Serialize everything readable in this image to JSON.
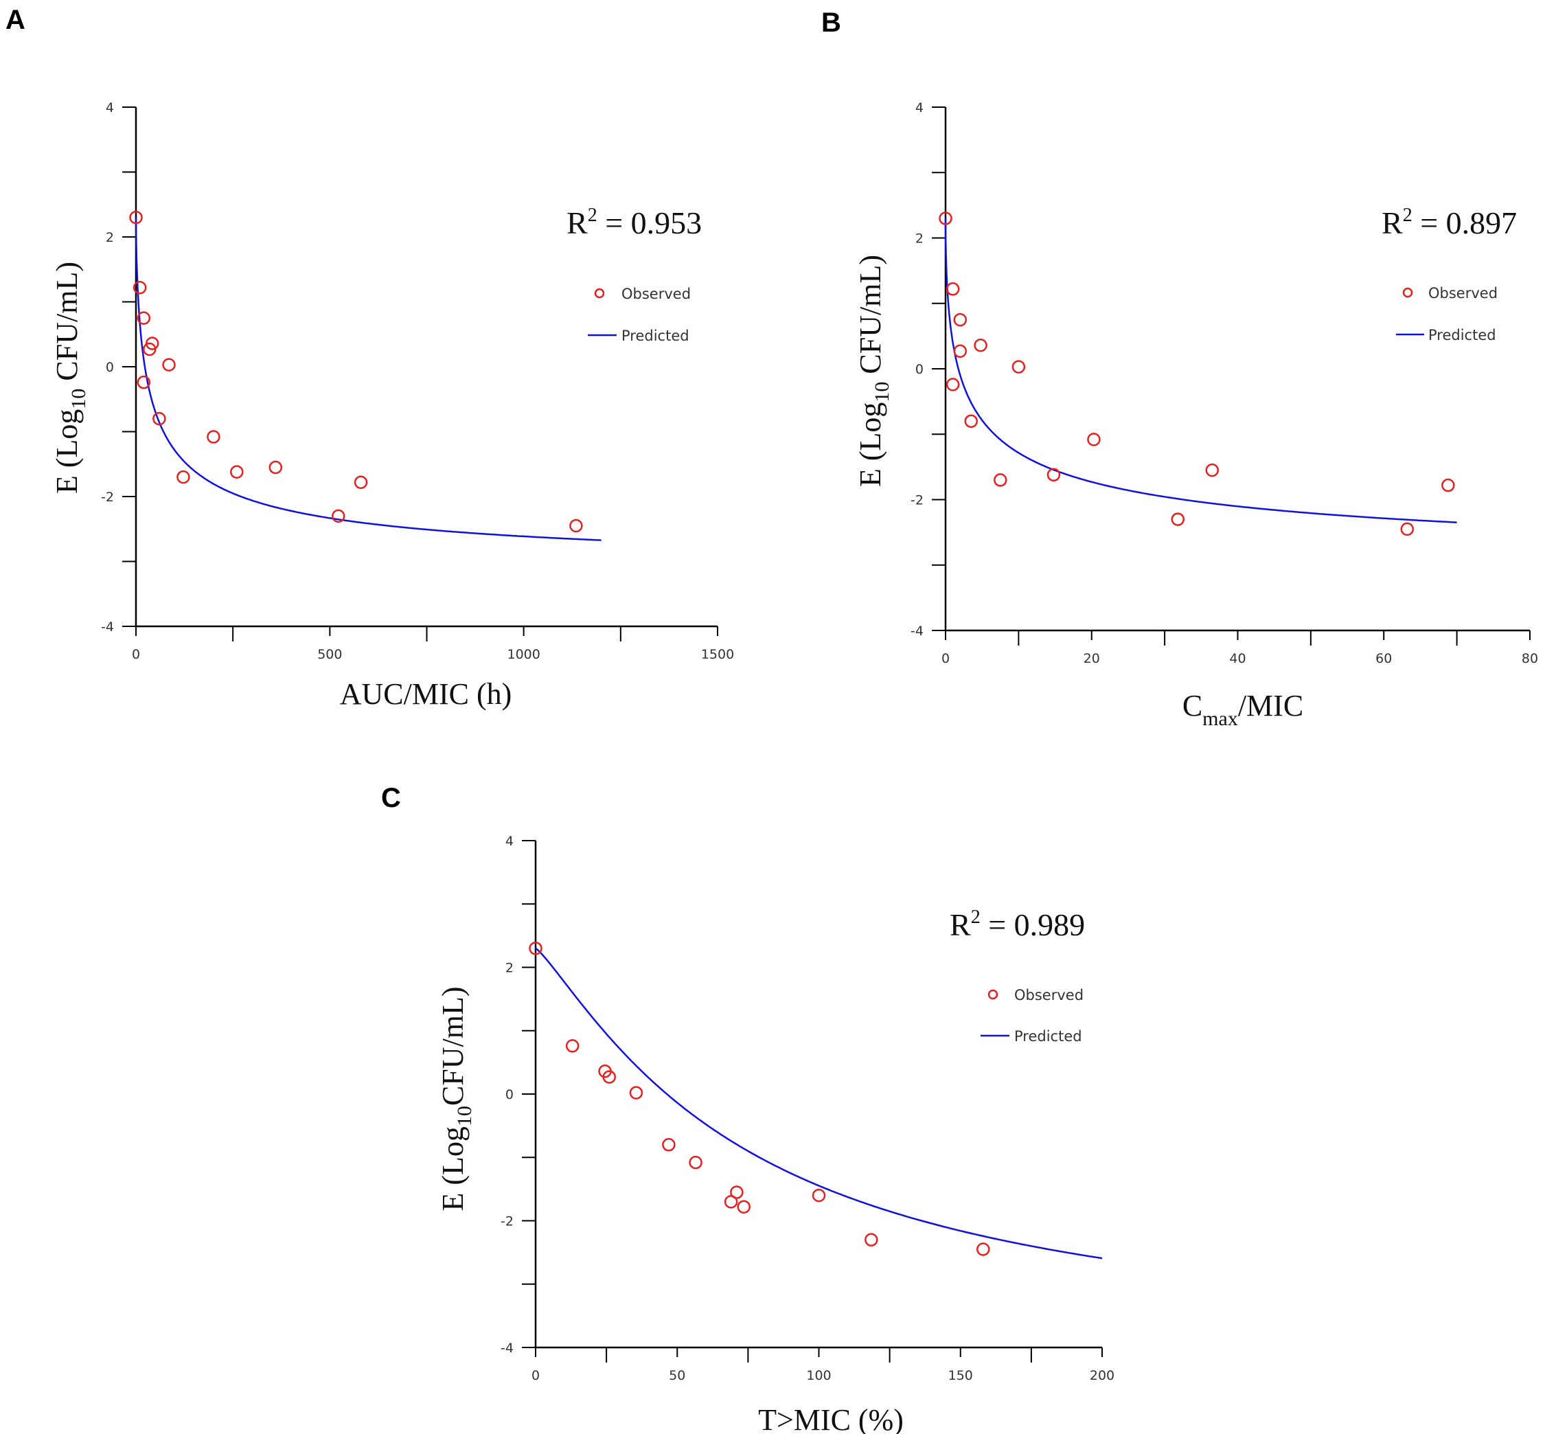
{
  "chart_data": [
    {
      "type": "scatter",
      "panel": "A",
      "ylabel_prefix": "E (Log",
      "ylabel_sub": "10",
      "ylabel_suffix": " CFU/mL)",
      "xlabel_main": "AUC/MIC (h)",
      "xlabel_sub": "",
      "xlabel_tail": "",
      "r2_label": "R",
      "r2_sup": "2",
      "r2_value": " = 0.953",
      "legend": {
        "observed": "Observed",
        "predicted": "Predicted"
      },
      "xlim": [
        0,
        1500
      ],
      "ylim": [
        -4,
        4
      ],
      "xticks": [
        0,
        500,
        1000,
        1500
      ],
      "xtick_labels": [
        "0",
        "500",
        "1000",
        "1500"
      ],
      "yticks": [
        -4,
        -2,
        0,
        2,
        4
      ],
      "ytick_labels": [
        "-4",
        "-2",
        "0",
        "2",
        "4"
      ],
      "minor_x_step": 250,
      "minor_y_step": 1,
      "observed": [
        [
          0,
          2.3
        ],
        [
          10,
          1.22
        ],
        [
          20,
          0.75
        ],
        [
          20,
          -0.24
        ],
        [
          35,
          0.27
        ],
        [
          42,
          0.36
        ],
        [
          85,
          0.03
        ],
        [
          60,
          -0.8
        ],
        [
          200,
          -1.08
        ],
        [
          122,
          -1.7
        ],
        [
          260,
          -1.62
        ],
        [
          360,
          -1.55
        ],
        [
          522,
          -2.3
        ],
        [
          580,
          -1.78
        ],
        [
          1135,
          -2.45
        ]
      ],
      "model": {
        "kind": "emax",
        "E0": 2.3,
        "Emax": 5.5,
        "EC50": 38,
        "gamma": 0.65,
        "x_end": 1200
      }
    },
    {
      "type": "scatter",
      "panel": "B",
      "ylabel_prefix": "E (Log",
      "ylabel_sub": "10",
      "ylabel_suffix": " CFU/mL)",
      "xlabel_main": "C",
      "xlabel_sub": "max",
      "xlabel_tail": "/MIC",
      "r2_label": "R",
      "r2_sup": "2",
      "r2_value": " = 0.897",
      "legend": {
        "observed": "Observed",
        "predicted": "Predicted"
      },
      "xlim": [
        0,
        80
      ],
      "ylim": [
        -4,
        4
      ],
      "xticks": [
        0,
        20,
        40,
        60,
        80
      ],
      "xtick_labels": [
        "0",
        "20",
        "40",
        "60",
        "80"
      ],
      "yticks": [
        -4,
        -2,
        0,
        2,
        4
      ],
      "ytick_labels": [
        "-4",
        "-2",
        "0",
        "2",
        "4"
      ],
      "minor_x_step": 10,
      "minor_y_step": 1,
      "observed": [
        [
          0,
          2.3
        ],
        [
          1,
          1.22
        ],
        [
          2,
          0.75
        ],
        [
          1,
          -0.24
        ],
        [
          2,
          0.27
        ],
        [
          4.8,
          0.36
        ],
        [
          10,
          0.03
        ],
        [
          3.5,
          -0.8
        ],
        [
          20.3,
          -1.08
        ],
        [
          7.5,
          -1.7
        ],
        [
          14.8,
          -1.62
        ],
        [
          36.5,
          -1.55
        ],
        [
          31.8,
          -2.3
        ],
        [
          68.8,
          -1.78
        ],
        [
          63.2,
          -2.45
        ]
      ],
      "model": {
        "kind": "emax",
        "E0": 2.3,
        "Emax": 5.5,
        "EC50": 3.2,
        "gamma": 0.55,
        "x_end": 70
      }
    },
    {
      "type": "scatter",
      "panel": "C",
      "ylabel_prefix": "E (Log",
      "ylabel_sub": "10",
      "ylabel_suffix": "CFU/mL)",
      "xlabel_main": "T>MIC (%)",
      "xlabel_sub": "",
      "xlabel_tail": "",
      "r2_label": "R",
      "r2_sup": "2",
      "r2_value": " = 0.989",
      "legend": {
        "observed": "Observed",
        "predicted": "Predicted"
      },
      "xlim": [
        0,
        200
      ],
      "ylim": [
        -4,
        4
      ],
      "xticks": [
        0,
        50,
        100,
        150,
        200
      ],
      "xtick_labels": [
        "0",
        "50",
        "100",
        "150",
        "200"
      ],
      "yticks": [
        -4,
        -2,
        0,
        2,
        4
      ],
      "ytick_labels": [
        "-4",
        "-2",
        "0",
        "2",
        "4"
      ],
      "minor_x_step": 25,
      "minor_y_step": 1,
      "observed": [
        [
          0,
          2.3
        ],
        [
          13,
          0.76
        ],
        [
          24.5,
          0.36
        ],
        [
          26,
          0.27
        ],
        [
          35.5,
          0.02
        ],
        [
          47,
          -0.8
        ],
        [
          56.5,
          -1.08
        ],
        [
          69,
          -1.7
        ],
        [
          71,
          -1.55
        ],
        [
          73.5,
          -1.78
        ],
        [
          100,
          -1.6
        ],
        [
          118.5,
          -2.3
        ],
        [
          158,
          -2.45
        ]
      ],
      "model": {
        "kind": "emax",
        "E0": 2.3,
        "Emax": 6.4,
        "EC50": 75,
        "gamma": 1.2,
        "x_end": 200
      }
    }
  ]
}
